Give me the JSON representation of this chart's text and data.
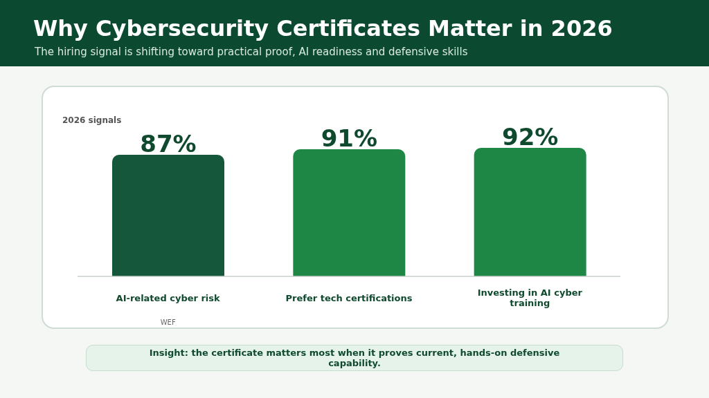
{
  "chart_data": {
    "type": "bar",
    "title": "Why Cybersecurity Certificates Matter in 2026",
    "subtitle": "The hiring signal is shifting toward practical proof, AI readiness and defensive skills",
    "categories": [
      "AI-related cyber risk",
      "Prefer tech certifications",
      "Investing in AI cyber training"
    ],
    "values": [
      87,
      91,
      92
    ],
    "value_labels": [
      "87%",
      "91%",
      "92%"
    ],
    "colors": [
      "#14573a",
      "#1e8745",
      "#1e8745"
    ],
    "annotations": [
      "2026 signals",
      "WEF",
      "Insight: the certificate matters most when it proves current, hands-on defensive capability."
    ]
  }
}
